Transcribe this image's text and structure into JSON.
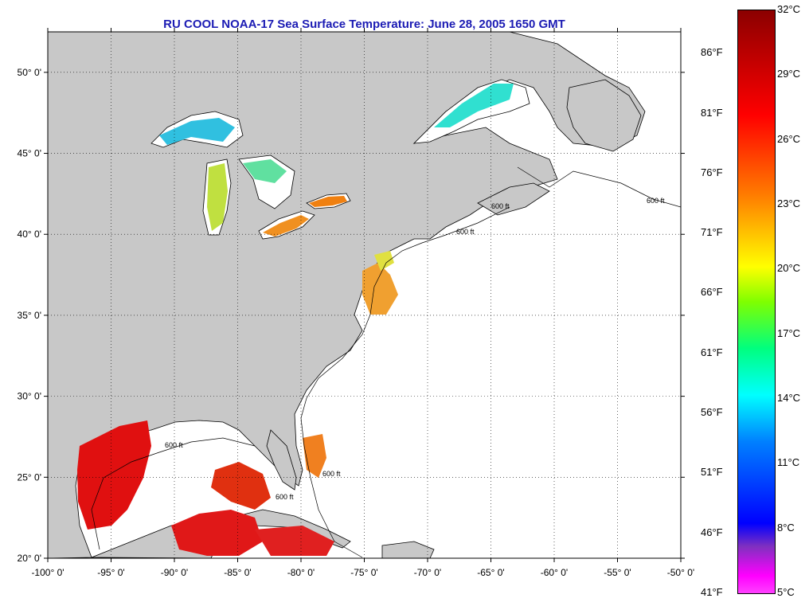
{
  "title": "RU COOL  NOAA-17  Sea Surface Temperature:  June 28, 2005 1650 GMT",
  "map": {
    "lon_range": [
      -100,
      -50
    ],
    "lat_range": [
      20,
      52.5
    ],
    "lon_ticks": [
      {
        "value": -100,
        "label": "-100° 0'"
      },
      {
        "value": -95,
        "label": "-95° 0'"
      },
      {
        "value": -90,
        "label": "-90° 0'"
      },
      {
        "value": -85,
        "label": "-85° 0'"
      },
      {
        "value": -80,
        "label": "-80° 0'"
      },
      {
        "value": -75,
        "label": "-75° 0'"
      },
      {
        "value": -70,
        "label": "-70° 0'"
      },
      {
        "value": -65,
        "label": "-65° 0'"
      },
      {
        "value": -60,
        "label": "-60° 0'"
      },
      {
        "value": -55,
        "label": "-55° 0'"
      },
      {
        "value": -50,
        "label": "-50° 0'"
      }
    ],
    "lat_ticks": [
      {
        "value": 20,
        "label": "20° 0'"
      },
      {
        "value": 25,
        "label": "25° 0'"
      },
      {
        "value": 30,
        "label": "30° 0'"
      },
      {
        "value": 35,
        "label": "35° 0'"
      },
      {
        "value": 40,
        "label": "40° 0'"
      },
      {
        "value": 45,
        "label": "45° 0'"
      },
      {
        "value": 50,
        "label": "50° 0'"
      }
    ],
    "grid": "dotted",
    "contour_label": "600 ft",
    "colors": {
      "land": "#c8c8c8",
      "ocean": "#ffffff",
      "warm_sst": "#e01010",
      "mid_sst": "#f09020",
      "cool_sst": "#30e0e0"
    }
  },
  "colorbar": {
    "celsius": [
      {
        "value": 32,
        "label": "32°C"
      },
      {
        "value": 29,
        "label": "29°C"
      },
      {
        "value": 26,
        "label": "26°C"
      },
      {
        "value": 23,
        "label": "23°C"
      },
      {
        "value": 20,
        "label": "20°C"
      },
      {
        "value": 17,
        "label": "17°C"
      },
      {
        "value": 14,
        "label": "14°C"
      },
      {
        "value": 11,
        "label": "11°C"
      },
      {
        "value": 8,
        "label": "8°C"
      },
      {
        "value": 5,
        "label": "5°C"
      }
    ],
    "fahrenheit": [
      {
        "value": 86,
        "label": "86°F"
      },
      {
        "value": 81,
        "label": "81°F"
      },
      {
        "value": 76,
        "label": "76°F"
      },
      {
        "value": 71,
        "label": "71°F"
      },
      {
        "value": 66,
        "label": "66°F"
      },
      {
        "value": 61,
        "label": "61°F"
      },
      {
        "value": 56,
        "label": "56°F"
      },
      {
        "value": 51,
        "label": "51°F"
      },
      {
        "value": 46,
        "label": "46°F"
      },
      {
        "value": 41,
        "label": "41°F"
      }
    ]
  }
}
